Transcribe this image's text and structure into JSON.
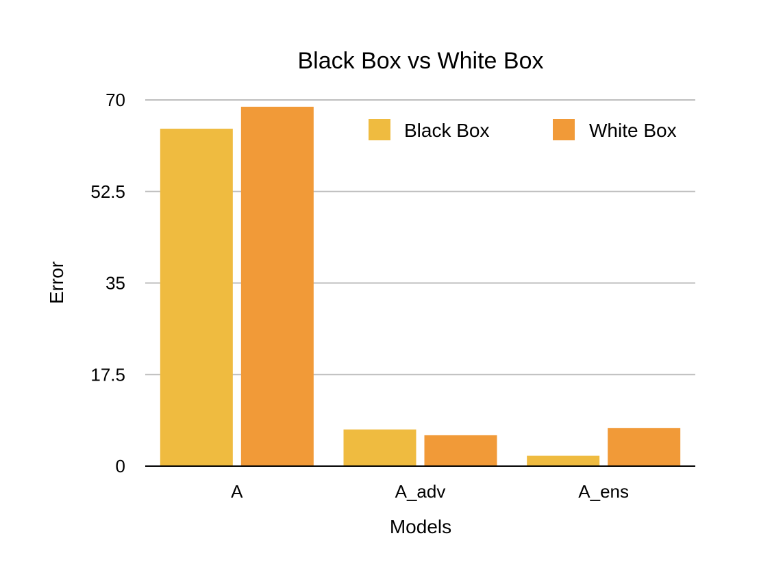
{
  "chart_data": {
    "type": "bar",
    "title": "Black Box vs White Box",
    "xlabel": "Models",
    "ylabel": "Error",
    "categories": [
      "A",
      "A_adv",
      "A_ens"
    ],
    "series": [
      {
        "name": "Black Box",
        "color": "#EFBB40",
        "values": [
          64.5,
          7,
          2
        ]
      },
      {
        "name": "White Box",
        "color": "#F19A38",
        "values": [
          68.7,
          5.9,
          7.3
        ]
      }
    ],
    "ylim": [
      0,
      70
    ],
    "yticks": [
      "0",
      "17.5",
      "35",
      "52.5",
      "70"
    ],
    "grid": true,
    "legend_position": "top-right"
  }
}
